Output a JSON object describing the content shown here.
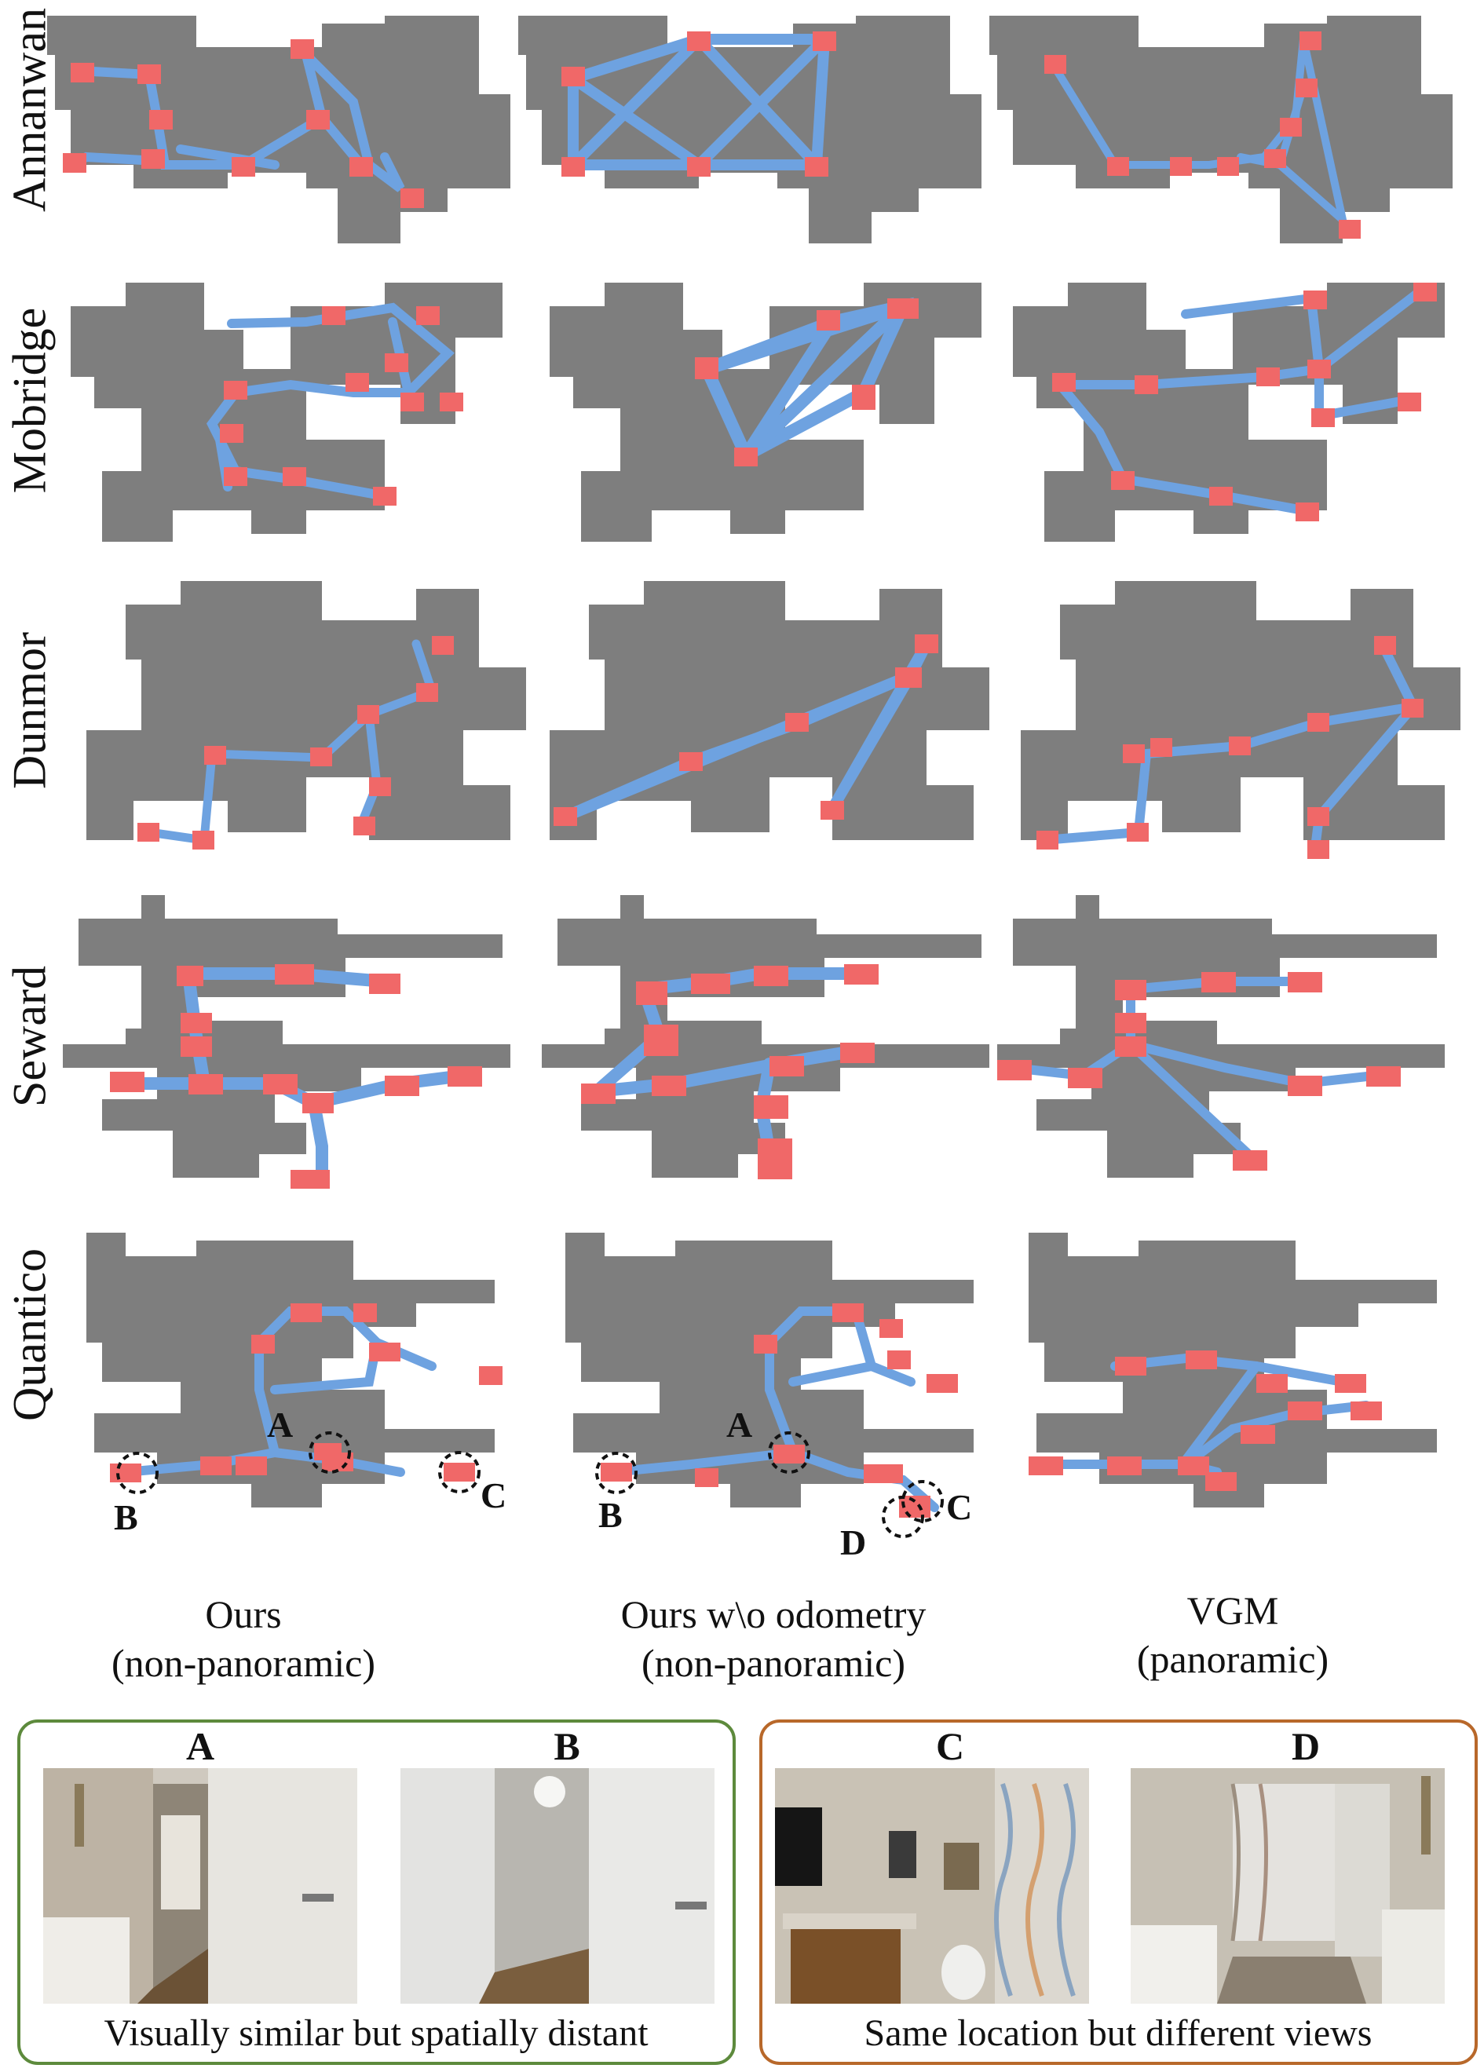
{
  "scenes": [
    "Annanwan",
    "Mobridge",
    "Dunmor",
    "Seward",
    "Quantico"
  ],
  "columns": [
    {
      "line1": "Ours",
      "line2": "(non-panoramic)"
    },
    {
      "line1": "Ours w\\o odometry",
      "line2": "(non-panoramic)"
    },
    {
      "line1": "VGM",
      "line2": "(panoramic)"
    }
  ],
  "markers": {
    "a": "A",
    "b": "B",
    "c": "C",
    "d": "D"
  },
  "panels": {
    "left": {
      "label_1": "A",
      "label_2": "B",
      "caption": "Visually similar but spatially distant"
    },
    "right": {
      "label_1": "C",
      "label_2": "D",
      "caption": "Same location but different views"
    }
  },
  "colors": {
    "map": "#7e7e7e",
    "edge": "#6ea2e0",
    "node": "#f06868",
    "panel_left_border": "#5d8a3c",
    "panel_right_border": "#b8682a"
  }
}
